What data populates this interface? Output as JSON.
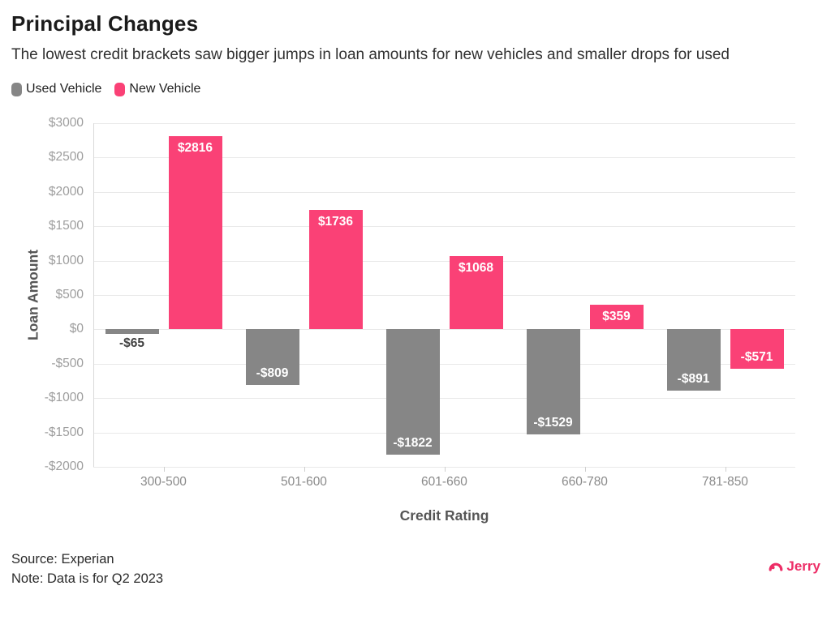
{
  "header": {
    "title": "Principal Changes",
    "subtitle": "The lowest credit brackets saw bigger jumps in loan amounts for new vehicles and smaller drops for used"
  },
  "legend": [
    {
      "label": "Used Vehicle",
      "color": "#868686"
    },
    {
      "label": "New Vehicle",
      "color": "#fa4176"
    }
  ],
  "chart_data": {
    "type": "bar",
    "categories": [
      "300-500",
      "501-600",
      "601-660",
      "660-780",
      "781-850"
    ],
    "series": [
      {
        "name": "Used Vehicle",
        "color": "#868686",
        "values": [
          -65,
          -809,
          -1822,
          -1529,
          -891
        ],
        "labels": [
          "-$65",
          "-$809",
          "-$1822",
          "-$1529",
          "-$891"
        ]
      },
      {
        "name": "New Vehicle",
        "color": "#fa4176",
        "values": [
          2816,
          1736,
          1068,
          359,
          -571
        ],
        "labels": [
          "$2816",
          "$1736",
          "$1068",
          "$359",
          "-$571"
        ]
      }
    ],
    "title": "Principal Changes",
    "xlabel": "Credit Rating",
    "ylabel": "Loan Amount",
    "ylim": [
      -2000,
      3000
    ],
    "ytick_step": 500,
    "ytick_labels": [
      "$3000",
      "$2500",
      "$2000",
      "$1500",
      "$1000",
      "$500",
      "$0",
      "-$500",
      "-$1000",
      "-$1500",
      "-$2000"
    ],
    "grid": true,
    "legend_position": "top-left",
    "colors": {
      "grid": "#e9e9e9",
      "axis_line": "#d9d9d9",
      "tick_text": "#9d9d9d",
      "label_inside": "#ffffff",
      "label_outside": "#414141"
    }
  },
  "footer": {
    "source": "Source: Experian",
    "note": "Note: Data is for Q2 2023",
    "brand": "Jerry",
    "brand_color": "#ed2e67"
  }
}
